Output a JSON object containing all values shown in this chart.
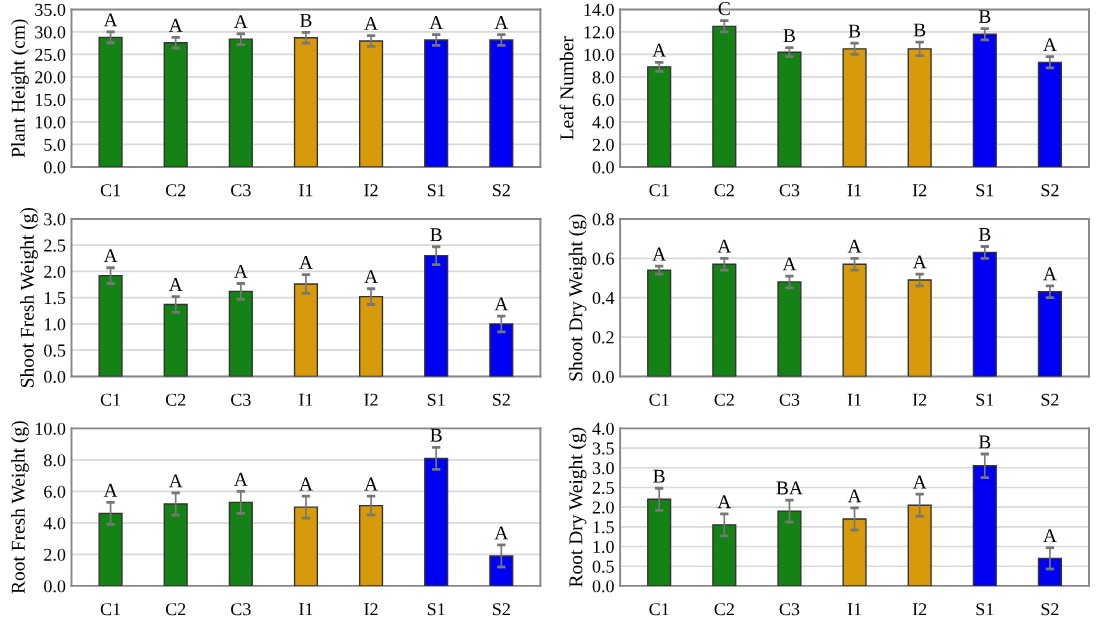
{
  "chart_data": [
    {
      "type": "bar",
      "ylabel": "Plant Height (cm)",
      "categories": [
        "C1",
        "C2",
        "C3",
        "I1",
        "I2",
        "S1",
        "S2"
      ],
      "values": [
        28.8,
        27.6,
        28.4,
        28.7,
        28.0,
        28.2,
        28.2
      ],
      "errors": [
        1.2,
        1.2,
        1.2,
        1.2,
        1.2,
        1.2,
        1.2
      ],
      "colors": [
        "#148214",
        "#148214",
        "#148214",
        "#d69a0a",
        "#d69a0a",
        "#0000f5",
        "#0000f5"
      ],
      "ylim": [
        0,
        35
      ],
      "yticks": [
        {
          "value": 0,
          "label": "0.0"
        },
        {
          "value": 5,
          "label": "5.0"
        },
        {
          "value": 10,
          "label": "10.0"
        },
        {
          "value": 15,
          "label": "15.0"
        },
        {
          "value": 20,
          "label": "20.0"
        },
        {
          "value": 25,
          "label": "25.0"
        },
        {
          "value": 30,
          "label": "30.0"
        },
        {
          "value": 35,
          "label": "35.0"
        }
      ],
      "grid": "y",
      "annotations": [
        "A",
        "A",
        "A",
        "B",
        "A",
        "A",
        "A"
      ]
    },
    {
      "type": "bar",
      "ylabel": "Leaf Number",
      "categories": [
        "C1",
        "C2",
        "C3",
        "I1",
        "I2",
        "S1",
        "S2"
      ],
      "values": [
        8.9,
        12.5,
        10.2,
        10.5,
        10.5,
        11.8,
        9.3
      ],
      "errors": [
        0.4,
        0.5,
        0.4,
        0.5,
        0.6,
        0.5,
        0.5
      ],
      "colors": [
        "#148214",
        "#148214",
        "#148214",
        "#d69a0a",
        "#d69a0a",
        "#0000f5",
        "#0000f5"
      ],
      "ylim": [
        0,
        14
      ],
      "yticks": [
        {
          "value": 0,
          "label": "0.0"
        },
        {
          "value": 2,
          "label": "2.0"
        },
        {
          "value": 4,
          "label": "4.0"
        },
        {
          "value": 6,
          "label": "6.0"
        },
        {
          "value": 8,
          "label": "8.0"
        },
        {
          "value": 10,
          "label": "10.0"
        },
        {
          "value": 12,
          "label": "12.0"
        },
        {
          "value": 14,
          "label": "14.0"
        }
      ],
      "grid": "y",
      "annotations": [
        "A",
        "C",
        "B",
        "B",
        "B",
        "B",
        "A"
      ]
    },
    {
      "type": "bar",
      "ylabel": "Shoot Fresh Weight (g)",
      "categories": [
        "C1",
        "C2",
        "C3",
        "I1",
        "I2",
        "S1",
        "S2"
      ],
      "values": [
        1.92,
        1.37,
        1.62,
        1.76,
        1.52,
        2.3,
        1.0
      ],
      "errors": [
        0.15,
        0.15,
        0.15,
        0.18,
        0.15,
        0.17,
        0.15
      ],
      "colors": [
        "#148214",
        "#148214",
        "#148214",
        "#d69a0a",
        "#d69a0a",
        "#0000f5",
        "#0000f5"
      ],
      "ylim": [
        0,
        3
      ],
      "yticks": [
        {
          "value": 0,
          "label": "0.0"
        },
        {
          "value": 0.5,
          "label": "0.5"
        },
        {
          "value": 1,
          "label": "1.0"
        },
        {
          "value": 1.5,
          "label": "1.5"
        },
        {
          "value": 2,
          "label": "2.0"
        },
        {
          "value": 2.5,
          "label": "2.5"
        },
        {
          "value": 3,
          "label": "3.0"
        }
      ],
      "grid": "y",
      "annotations": [
        "A",
        "A",
        "A",
        "A",
        "A",
        "B",
        "A"
      ]
    },
    {
      "type": "bar",
      "ylabel": "Shoot Dry Weight (g)",
      "categories": [
        "C1",
        "C2",
        "C3",
        "I1",
        "I2",
        "S1",
        "S2"
      ],
      "values": [
        0.54,
        0.57,
        0.48,
        0.57,
        0.49,
        0.63,
        0.43
      ],
      "errors": [
        0.02,
        0.03,
        0.03,
        0.03,
        0.03,
        0.03,
        0.03
      ],
      "colors": [
        "#148214",
        "#148214",
        "#148214",
        "#d69a0a",
        "#d69a0a",
        "#0000f5",
        "#0000f5"
      ],
      "ylim": [
        0,
        0.8
      ],
      "yticks": [
        {
          "value": 0,
          "label": "0.0"
        },
        {
          "value": 0.2,
          "label": "0.2"
        },
        {
          "value": 0.4,
          "label": "0.4"
        },
        {
          "value": 0.6,
          "label": "0.6"
        },
        {
          "value": 0.8,
          "label": "0.8"
        }
      ],
      "grid": "y",
      "annotations": [
        "A",
        "A",
        "A",
        "A",
        "A",
        "B",
        "A"
      ]
    },
    {
      "type": "bar",
      "ylabel": "Root Fresh Weight (g)",
      "categories": [
        "C1",
        "C2",
        "C3",
        "I1",
        "I2",
        "S1",
        "S2"
      ],
      "values": [
        4.6,
        5.2,
        5.3,
        5.0,
        5.1,
        8.1,
        1.9
      ],
      "errors": [
        0.7,
        0.7,
        0.7,
        0.7,
        0.6,
        0.7,
        0.7
      ],
      "colors": [
        "#148214",
        "#148214",
        "#148214",
        "#d69a0a",
        "#d69a0a",
        "#0000f5",
        "#0000f5"
      ],
      "ylim": [
        0,
        10
      ],
      "yticks": [
        {
          "value": 0,
          "label": "0.0"
        },
        {
          "value": 2,
          "label": "2.0"
        },
        {
          "value": 4,
          "label": "4.0"
        },
        {
          "value": 6,
          "label": "6.0"
        },
        {
          "value": 8,
          "label": "8.0"
        },
        {
          "value": 10,
          "label": "10.0"
        }
      ],
      "grid": "y",
      "annotations": [
        "A",
        "A",
        "A",
        "A",
        "A",
        "B",
        "A"
      ]
    },
    {
      "type": "bar",
      "ylabel": "Root Dry Weight (g)",
      "categories": [
        "C1",
        "C2",
        "C3",
        "I1",
        "I2",
        "S1",
        "S2"
      ],
      "values": [
        2.2,
        1.55,
        1.9,
        1.7,
        2.05,
        3.05,
        0.7
      ],
      "errors": [
        0.28,
        0.28,
        0.28,
        0.28,
        0.28,
        0.3,
        0.27
      ],
      "colors": [
        "#148214",
        "#148214",
        "#148214",
        "#d69a0a",
        "#d69a0a",
        "#0000f5",
        "#0000f5"
      ],
      "ylim": [
        0,
        4
      ],
      "yticks": [
        {
          "value": 0,
          "label": "0.0"
        },
        {
          "value": 0.5,
          "label": "0.5"
        },
        {
          "value": 1,
          "label": "1.0"
        },
        {
          "value": 1.5,
          "label": "1.5"
        },
        {
          "value": 2,
          "label": "2.0"
        },
        {
          "value": 2.5,
          "label": "2.5"
        },
        {
          "value": 3,
          "label": "3.0"
        },
        {
          "value": 3.5,
          "label": "3.5"
        },
        {
          "value": 4,
          "label": "4.0"
        }
      ],
      "grid": "y",
      "annotations": [
        "B",
        "A",
        "BA",
        "A",
        "A",
        "B",
        "A"
      ]
    }
  ]
}
